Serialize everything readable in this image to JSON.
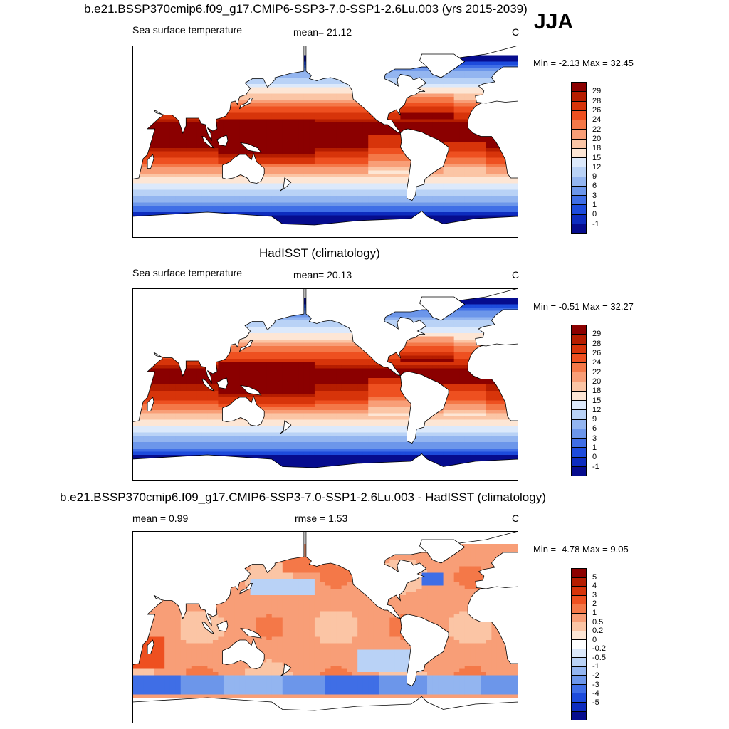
{
  "season": "JJA",
  "panels": [
    {
      "title": "b.e21.BSSP370cmip6.f09_g17.CMIP6-SSP3-7.0-SSP1-2.6Lu.003 (yrs 2015-2039)",
      "left_label": "Sea surface temperature",
      "mid_label": "mean=  21.12",
      "units": "C",
      "minmax": "Min =  -2.13 Max =  32.45",
      "colorbar_labels": [
        "29",
        "28",
        "26",
        "24",
        "22",
        "20",
        "18",
        "15",
        "12",
        "9",
        "6",
        "3",
        "1",
        "0",
        "-1"
      ],
      "type": "model"
    },
    {
      "title": "HadISST (climatology)",
      "left_label": "Sea surface temperature",
      "mid_label": "mean=  20.13",
      "units": "C",
      "minmax": "Min =  -0.51 Max =  32.27",
      "colorbar_labels": [
        "29",
        "28",
        "26",
        "24",
        "22",
        "20",
        "18",
        "15",
        "12",
        "9",
        "6",
        "3",
        "1",
        "0",
        "-1"
      ],
      "type": "obs"
    },
    {
      "title": "b.e21.BSSP370cmip6.f09_g17.CMIP6-SSP3-7.0-SSP1-2.6Lu.003 - HadISST (climatology)",
      "left_label": "mean =   0.99",
      "mid_label": "rmse =   1.53",
      "units": "C",
      "minmax": "Min =  -4.78 Max =   9.05",
      "colorbar_labels": [
        "5",
        "4",
        "3",
        "2",
        "1",
        "0.5",
        "0.2",
        "0",
        "-0.2",
        "-0.5",
        "-1",
        "-2",
        "-3",
        "-4",
        "-5"
      ],
      "type": "diff"
    }
  ],
  "colors": {
    "sst_scale": [
      "#8b0000",
      "#b51d00",
      "#d7340a",
      "#ee5020",
      "#f47848",
      "#f89e77",
      "#fbc5a5",
      "#fde6d5",
      "#dce9fb",
      "#b9d2f6",
      "#93b5f0",
      "#6c96ea",
      "#3f6ee6",
      "#1d4bdc",
      "#0d2cbf",
      "#060c8e"
    ],
    "diff_scale": [
      "#8b0000",
      "#b51d00",
      "#d7340a",
      "#ee5020",
      "#f47848",
      "#f89e77",
      "#fbc5a5",
      "#fde6d5",
      "#ffffff",
      "#dce9fb",
      "#b9d2f6",
      "#93b5f0",
      "#6c96ea",
      "#3f6ee6",
      "#1d4bdc",
      "#0d2cbf",
      "#060c8e"
    ],
    "land": "#ffffff",
    "coast": "#000000"
  }
}
